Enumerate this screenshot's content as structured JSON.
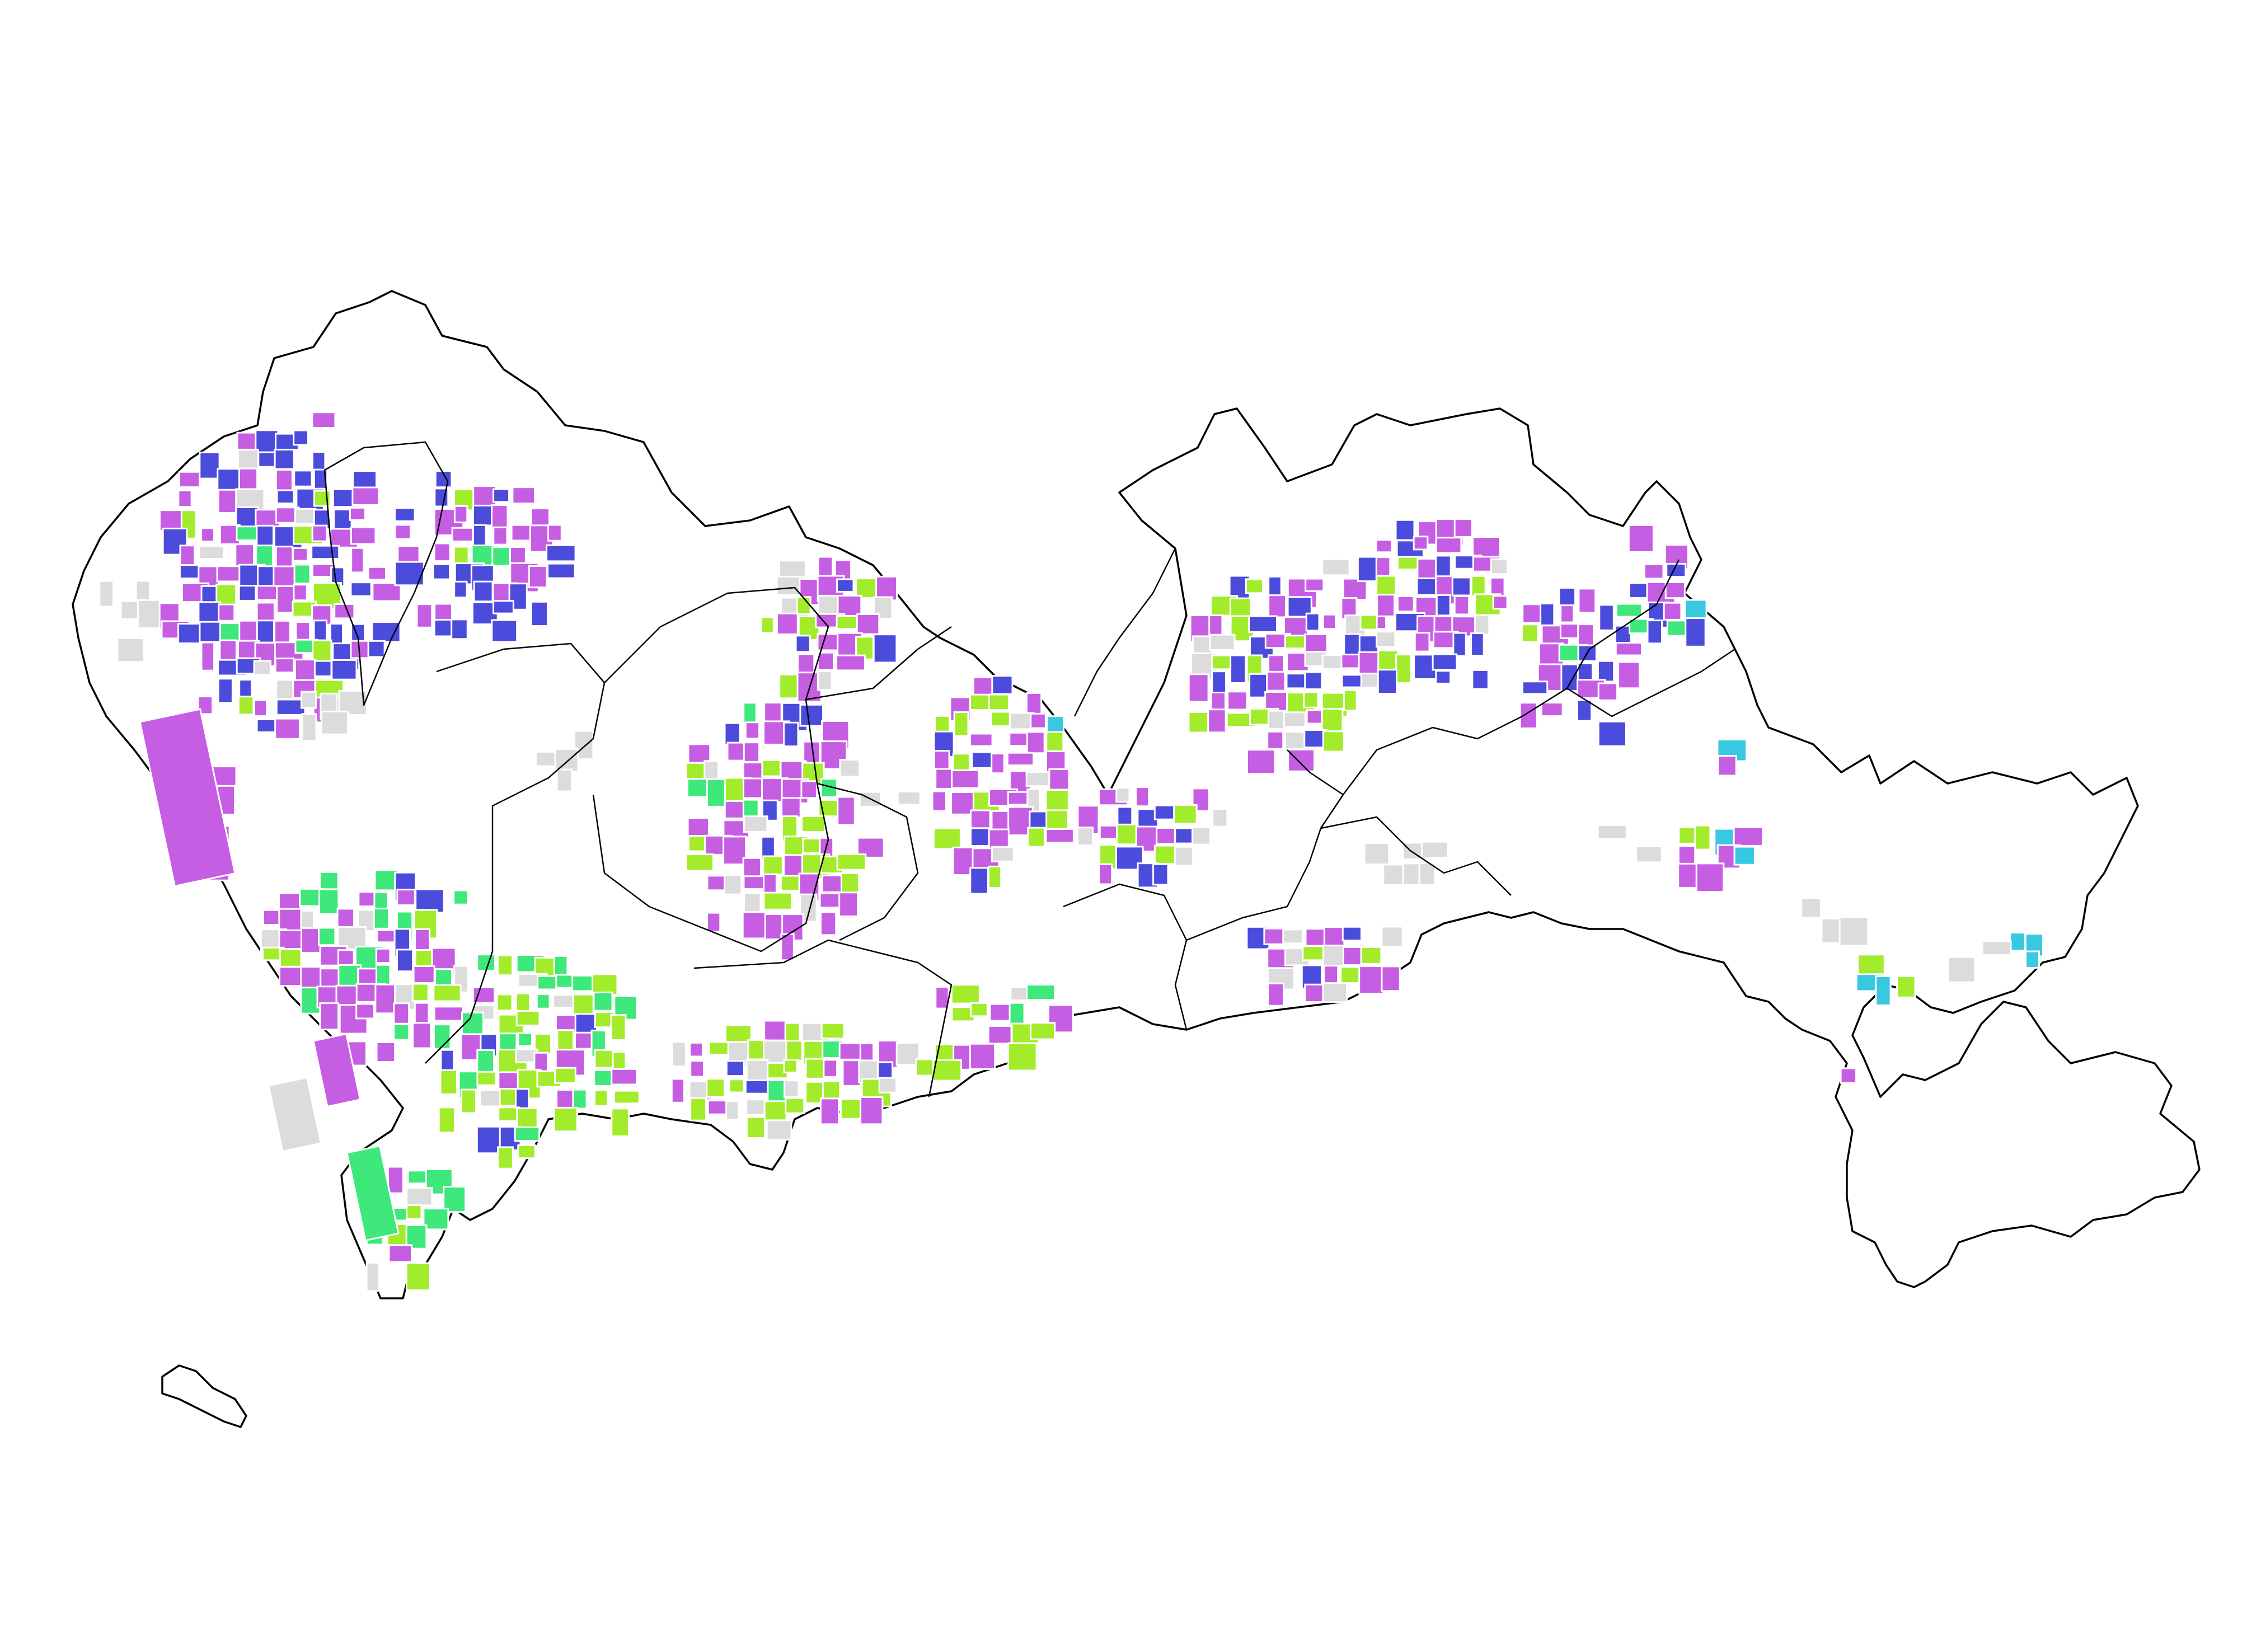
{
  "map": {
    "colors": {
      "magenta": "#c65ee3",
      "blue": "#4b4bdc",
      "lime": "#a3ec2c",
      "green": "#3ee87a",
      "cyan": "#38c8e0",
      "gray": "#dcdcdc",
      "boundary": "#000000",
      "background": "#ffffff"
    },
    "category_order": [
      "gray",
      "magenta",
      "blue",
      "lime",
      "green",
      "cyan"
    ],
    "background": "#ffffff"
  }
}
